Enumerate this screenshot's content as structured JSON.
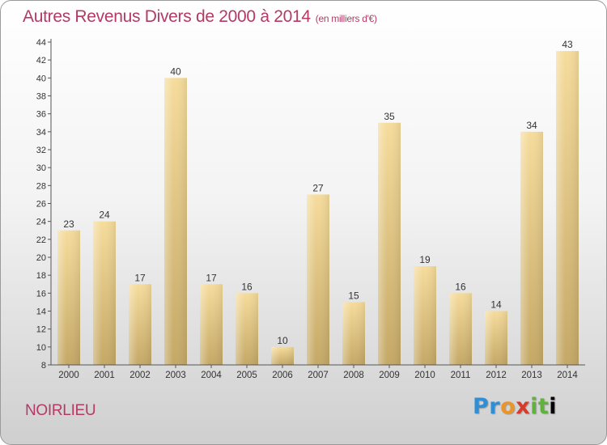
{
  "title": "Autres Revenus Divers de 2000 à 2014",
  "unit_note": "(en milliers d'€)",
  "city": "NOIRLIEU",
  "brand": "Proxiti",
  "colors": {
    "title": "#b43a66",
    "bar_light": "#f6dc9c",
    "bar_dark": "#c4a866",
    "axis": "#555555"
  },
  "chart_data": {
    "type": "bar",
    "title": "Autres Revenus Divers de 2000 à 2014",
    "xlabel": "",
    "ylabel": "",
    "categories": [
      "2000",
      "2001",
      "2002",
      "2003",
      "2004",
      "2005",
      "2006",
      "2007",
      "2008",
      "2009",
      "2010",
      "2011",
      "2012",
      "2013",
      "2014"
    ],
    "values": [
      23,
      24,
      17,
      40,
      17,
      16,
      10,
      27,
      15,
      35,
      19,
      16,
      14,
      34,
      43
    ],
    "ylim": [
      8,
      44
    ],
    "yticks": [
      8,
      10,
      12,
      14,
      16,
      18,
      20,
      22,
      24,
      26,
      28,
      30,
      32,
      34,
      36,
      38,
      40,
      42,
      44
    ],
    "grid": false,
    "legend": "none"
  }
}
